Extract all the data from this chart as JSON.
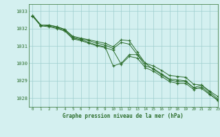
{
  "title": "Graphe pression niveau de la mer (hPa)",
  "background_color": "#d4f0f0",
  "grid_color": "#9ecece",
  "line_color": "#2d6e2d",
  "xlim": [
    -0.5,
    23
  ],
  "ylim": [
    1027.5,
    1033.4
  ],
  "yticks": [
    1028,
    1029,
    1030,
    1031,
    1032,
    1033
  ],
  "xticks": [
    0,
    1,
    2,
    3,
    4,
    5,
    6,
    7,
    8,
    9,
    10,
    11,
    12,
    13,
    14,
    15,
    16,
    17,
    18,
    19,
    20,
    21,
    22,
    23
  ],
  "series": [
    [
      1032.75,
      1032.2,
      1032.2,
      1032.1,
      1031.95,
      1031.55,
      1031.45,
      1031.35,
      1031.25,
      1031.15,
      1030.95,
      1031.35,
      1031.3,
      1030.65,
      1030.0,
      1029.85,
      1029.6,
      1029.3,
      1029.25,
      1029.2,
      1028.8,
      1028.75,
      1028.4,
      1028.1
    ],
    [
      1032.75,
      1032.2,
      1032.2,
      1032.1,
      1031.95,
      1031.5,
      1031.4,
      1031.3,
      1031.15,
      1031.05,
      1030.85,
      1031.2,
      1031.1,
      1030.5,
      1029.85,
      1029.7,
      1029.4,
      1029.1,
      1029.05,
      1029.0,
      1028.6,
      1028.55,
      1028.2,
      1027.9
    ],
    [
      1032.75,
      1032.2,
      1032.15,
      1032.05,
      1031.9,
      1031.45,
      1031.35,
      1031.2,
      1031.05,
      1030.95,
      1029.85,
      1030.0,
      1030.5,
      1030.5,
      1030.0,
      1029.65,
      1029.35,
      1029.05,
      1028.95,
      1028.95,
      1028.6,
      1028.75,
      1028.35,
      1027.95
    ],
    [
      1032.7,
      1032.15,
      1032.1,
      1032.0,
      1031.85,
      1031.4,
      1031.3,
      1031.15,
      1031.0,
      1030.9,
      1030.75,
      1029.95,
      1030.4,
      1030.3,
      1029.75,
      1029.55,
      1029.25,
      1028.95,
      1028.85,
      1028.85,
      1028.5,
      1028.65,
      1028.25,
      1027.85
    ]
  ]
}
